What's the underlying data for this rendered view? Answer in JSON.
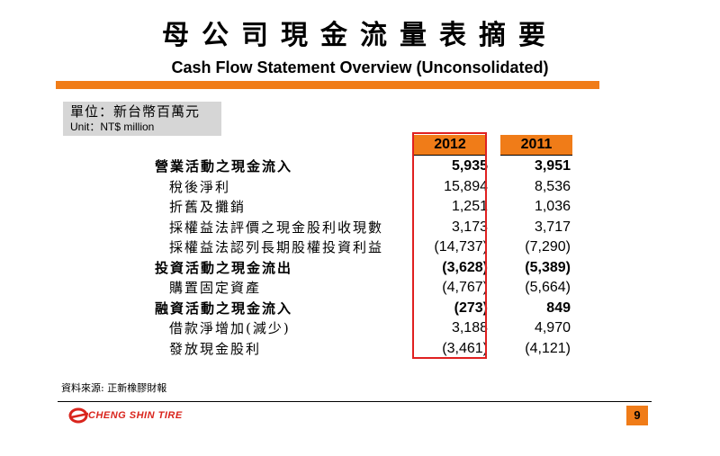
{
  "header": {
    "title_zh": "母公司現金流量表摘要",
    "title_en": "Cash Flow Statement Overview (Unconsolidated)"
  },
  "unit": {
    "zh": "單位：新台幣百萬元",
    "en": "Unit：NT$ million"
  },
  "table": {
    "columns": [
      "2012",
      "2011"
    ],
    "rows": [
      {
        "label": "營業活動之現金流入",
        "values": [
          "5,935",
          "3,951"
        ],
        "bold": true,
        "level": 0
      },
      {
        "label": "稅後淨利",
        "values": [
          "15,894",
          "8,536"
        ],
        "bold": false,
        "level": 1
      },
      {
        "label": "折舊及攤銷",
        "values": [
          "1,251",
          "1,036"
        ],
        "bold": false,
        "level": 1
      },
      {
        "label": "採權益法評價之現金股利收現數",
        "values": [
          "3,173",
          "3,717"
        ],
        "bold": false,
        "level": 1
      },
      {
        "label": "採權益法認列長期股權投資利益",
        "values": [
          "(14,737)",
          "(7,290)"
        ],
        "bold": false,
        "level": 1
      },
      {
        "label": "投資活動之現金流出",
        "values": [
          "(3,628)",
          "(5,389)"
        ],
        "bold": true,
        "level": 0
      },
      {
        "label": "購置固定資產",
        "values": [
          "(4,767)",
          "(5,664)"
        ],
        "bold": false,
        "level": 1
      },
      {
        "label": "融資活動之現金流入",
        "values": [
          "(273)",
          "849"
        ],
        "bold": true,
        "level": 0
      },
      {
        "label": "借款淨增加(減少)",
        "values": [
          "3,188",
          "4,970"
        ],
        "bold": false,
        "level": 1
      },
      {
        "label": "發放現金股利",
        "values": [
          "(3,461)",
          "(4,121)"
        ],
        "bold": false,
        "level": 1
      }
    ]
  },
  "footer": {
    "source": "資料來源: 正新橡膠財報",
    "logo_text": "CHENG SHIN TIRE",
    "page_number": "9"
  },
  "colors": {
    "accent": "#f07c18",
    "highlight_border": "#e02020",
    "unit_box": "#d6d6d6",
    "logo": "#d9241c"
  }
}
